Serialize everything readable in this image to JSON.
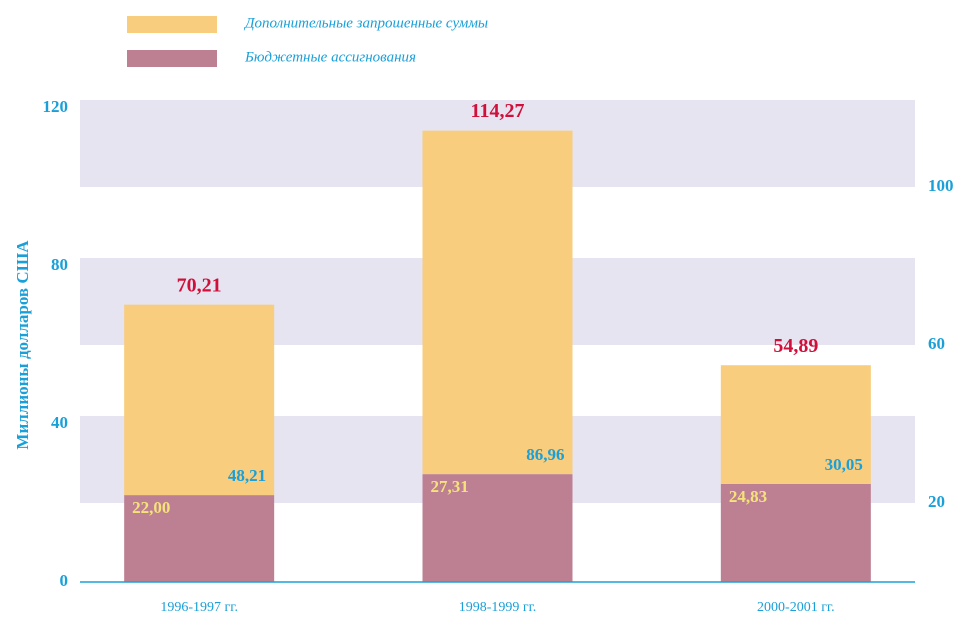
{
  "chart_data": {
    "type": "stacked_bar",
    "y_axis_label": "Миллионы долларов США",
    "categories": [
      "1996-1997 гг.",
      "1998-1999 гг.",
      "2000-2001 гг."
    ],
    "series": [
      {
        "name": "Дополнительные запрошенные суммы",
        "color": "#f8cd7d",
        "values": [
          48.21,
          86.96,
          30.05
        ],
        "value_labels": [
          "48,21",
          "86,96",
          "30,05"
        ]
      },
      {
        "name": "Бюджетные ассигнования",
        "color": "#bd8093",
        "values": [
          22.0,
          27.31,
          24.83
        ],
        "value_labels": [
          "22,00",
          "27,31",
          "24,83"
        ]
      }
    ],
    "totals": [
      70.21,
      114.27,
      54.89
    ],
    "total_labels": [
      "70,21",
      "114,27",
      "54,89"
    ],
    "ylim": [
      0,
      120
    ],
    "yticks": [
      0,
      40,
      80,
      120
    ],
    "y2lim": [
      0,
      120
    ],
    "y2ticks": [
      20,
      60,
      100
    ],
    "legend": "top-left"
  }
}
